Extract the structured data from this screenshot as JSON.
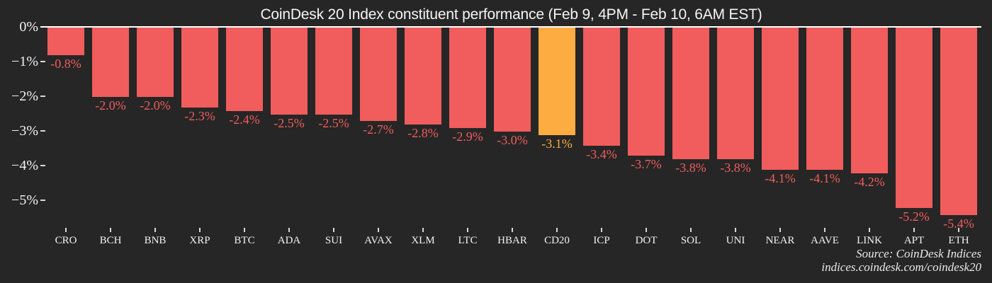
{
  "chart_data": {
    "type": "bar",
    "title": "CoinDesk 20 Index constituent performance (Feb 9, 4PM - Feb 10, 6AM EST)",
    "categories": [
      "CRO",
      "BCH",
      "BNB",
      "XRP",
      "BTC",
      "ADA",
      "SUI",
      "AVAX",
      "XLM",
      "LTC",
      "HBAR",
      "CD20",
      "ICP",
      "DOT",
      "SOL",
      "UNI",
      "NEAR",
      "AAVE",
      "LINK",
      "APT",
      "ETH"
    ],
    "values": [
      -0.8,
      -2.0,
      -2.0,
      -2.3,
      -2.4,
      -2.5,
      -2.5,
      -2.7,
      -2.8,
      -2.9,
      -3.0,
      -3.1,
      -3.4,
      -3.7,
      -3.8,
      -3.8,
      -4.1,
      -4.1,
      -4.2,
      -5.2,
      -5.4
    ],
    "bar_labels": [
      "-0.8%",
      "-2.0%",
      "-2.0%",
      "-2.3%",
      "-2.4%",
      "-2.5%",
      "-2.5%",
      "-2.7%",
      "-2.8%",
      "-2.9%",
      "-3.0%",
      "-3.1%",
      "-3.4%",
      "-3.7%",
      "-3.8%",
      "-3.8%",
      "-4.1%",
      "-4.1%",
      "-4.2%",
      "-5.2%",
      "-5.4%"
    ],
    "highlight_category": "CD20",
    "y_tick_labels": [
      "0%",
      "−1%",
      "−2%",
      "−3%",
      "−4%",
      "−5%"
    ],
    "y_tick_values": [
      0,
      -1,
      -2,
      -3,
      -4,
      -5
    ],
    "ylim": [
      -5.8,
      0
    ],
    "xlabel": "",
    "ylabel": "",
    "grid": false,
    "legend": false
  },
  "source": {
    "line1": "Source: CoinDesk Indices",
    "line2": "indices.coindesk.com/coindesk20"
  },
  "colors": {
    "background": "#262626",
    "bar": "#F15C5C",
    "highlight": "#FDAC42",
    "zero_line": "#FFFFFF",
    "axis_text": "#F2F2F2",
    "tick_mark": "#D9D9D9",
    "title_text": "#F5F5F5",
    "source_text": "#E9E9E9"
  }
}
